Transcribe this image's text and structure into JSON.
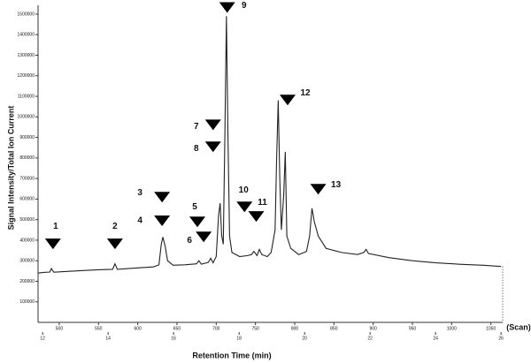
{
  "chart_data": {
    "type": "line",
    "y_label": "Signal Intensity/Total Ion Current",
    "x_label": "Retention Time (min)",
    "x_unit_label": "(Scan)",
    "xlim": [
      473,
      1065
    ],
    "xticks": [
      500,
      550,
      600,
      650,
      700,
      750,
      800,
      850,
      900,
      950,
      1000,
      1050
    ],
    "x2lim": [
      11.86,
      26.05
    ],
    "x2ticks": [
      12,
      14,
      16,
      18,
      20,
      22,
      24,
      26
    ],
    "ylim": [
      0,
      1560000
    ],
    "yticks": [
      100000,
      200000,
      300000,
      400000,
      500000,
      600000,
      700000,
      800000,
      900000,
      1000000,
      1100000,
      1200000,
      1300000,
      1400000,
      1500000
    ],
    "color": "#222222",
    "x": [
      473,
      480,
      488,
      490,
      493,
      510,
      530,
      550,
      568,
      571,
      574,
      600,
      620,
      627,
      630,
      632,
      635,
      638,
      645,
      660,
      675,
      678,
      681,
      690,
      693,
      696,
      700,
      703,
      705,
      707,
      709,
      711,
      713,
      715,
      717,
      720,
      730,
      740,
      745,
      748,
      752,
      755,
      758,
      765,
      770,
      775,
      777,
      779,
      781,
      783,
      786,
      788,
      790,
      795,
      805,
      815,
      819,
      822,
      825,
      830,
      840,
      860,
      880,
      888,
      891,
      894,
      920,
      950,
      980,
      1010,
      1040,
      1063
    ],
    "values": [
      240000,
      243000,
      245000,
      262000,
      244000,
      248000,
      252000,
      256000,
      258000,
      285000,
      258000,
      265000,
      270000,
      280000,
      380000,
      415000,
      370000,
      300000,
      278000,
      280000,
      285000,
      300000,
      283000,
      292000,
      312000,
      290000,
      320000,
      520000,
      580000,
      420000,
      380000,
      900000,
      1490000,
      900000,
      420000,
      340000,
      320000,
      325000,
      330000,
      345000,
      325000,
      355000,
      330000,
      320000,
      340000,
      450000,
      800000,
      1080000,
      700000,
      450000,
      620000,
      830000,
      420000,
      360000,
      330000,
      345000,
      420000,
      555000,
      490000,
      420000,
      360000,
      340000,
      330000,
      340000,
      355000,
      335000,
      315000,
      300000,
      290000,
      283000,
      278000,
      272000
    ],
    "annotations": [
      {
        "label": "1",
        "x": 492,
        "y": 382000
      },
      {
        "label": "2",
        "x": 571,
        "y": 382000
      },
      {
        "label": "3",
        "x": 631,
        "y": 609000
      },
      {
        "label": "4",
        "x": 631,
        "y": 494000
      },
      {
        "label": "5",
        "x": 676,
        "y": 489000
      },
      {
        "label": "6",
        "x": 684,
        "y": 416000
      },
      {
        "label": "7",
        "x": 696,
        "y": 961000
      },
      {
        "label": "8",
        "x": 696,
        "y": 854000
      },
      {
        "label": "9",
        "x": 714,
        "y": 1532000
      },
      {
        "label": "10",
        "x": 736,
        "y": 562000
      },
      {
        "label": "11",
        "x": 751,
        "y": 515000
      },
      {
        "label": "12",
        "x": 791,
        "y": 1082000
      },
      {
        "label": "13",
        "x": 830,
        "y": 648000
      }
    ]
  }
}
